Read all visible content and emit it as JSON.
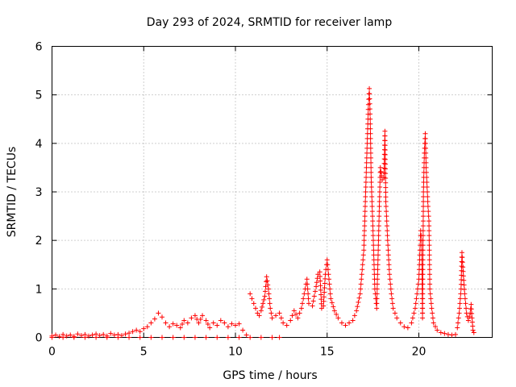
{
  "chart_data": {
    "type": "scatter",
    "title": "Day 293 of 2024, SRMTID for receiver lamp",
    "xlabel": "GPS time / hours",
    "ylabel": "SRMTID / TECUs",
    "xlim": [
      0,
      24
    ],
    "ylim": [
      0,
      6
    ],
    "xticks": [
      0,
      5,
      10,
      15,
      20
    ],
    "yticks": [
      0,
      1,
      2,
      3,
      4,
      5,
      6
    ],
    "grid": true,
    "marker": "+",
    "color": "#ff0000",
    "series": [
      {
        "name": "SRMTID",
        "points": [
          [
            0.0,
            0.03
          ],
          [
            0.2,
            0.05
          ],
          [
            0.4,
            0.02
          ],
          [
            0.6,
            0.06
          ],
          [
            0.8,
            0.03
          ],
          [
            1.0,
            0.05
          ],
          [
            1.2,
            0.02
          ],
          [
            1.4,
            0.07
          ],
          [
            1.6,
            0.04
          ],
          [
            1.8,
            0.06
          ],
          [
            2.0,
            0.03
          ],
          [
            2.2,
            0.05
          ],
          [
            2.4,
            0.07
          ],
          [
            2.6,
            0.04
          ],
          [
            2.8,
            0.06
          ],
          [
            3.0,
            0.03
          ],
          [
            3.2,
            0.08
          ],
          [
            3.4,
            0.05
          ],
          [
            3.6,
            0.06
          ],
          [
            3.8,
            0.04
          ],
          [
            4.0,
            0.07
          ],
          [
            4.2,
            0.09
          ],
          [
            4.4,
            0.12
          ],
          [
            4.6,
            0.15
          ],
          [
            4.8,
            0.12
          ],
          [
            5.0,
            0.18
          ],
          [
            5.2,
            0.22
          ],
          [
            5.4,
            0.3
          ],
          [
            5.6,
            0.38
          ],
          [
            5.8,
            0.5
          ],
          [
            6.0,
            0.42
          ],
          [
            6.2,
            0.3
          ],
          [
            6.4,
            0.22
          ],
          [
            6.6,
            0.28
          ],
          [
            6.8,
            0.25
          ],
          [
            7.0,
            0.2
          ],
          [
            7.2,
            0.35
          ],
          [
            7.4,
            0.3
          ],
          [
            7.6,
            0.4
          ],
          [
            7.8,
            0.45
          ],
          [
            8.0,
            0.3
          ],
          [
            8.2,
            0.45
          ],
          [
            8.4,
            0.35
          ],
          [
            8.6,
            0.2
          ],
          [
            8.8,
            0.3
          ],
          [
            9.0,
            0.25
          ],
          [
            9.2,
            0.35
          ],
          [
            9.4,
            0.3
          ],
          [
            9.6,
            0.22
          ],
          [
            9.8,
            0.28
          ],
          [
            10.0,
            0.25
          ],
          [
            10.2,
            0.28
          ],
          [
            10.4,
            0.15
          ],
          [
            10.6,
            0.05
          ],
          [
            0.0,
            0.0
          ],
          [
            0.6,
            0.0
          ],
          [
            1.2,
            0.0
          ],
          [
            1.8,
            0.0
          ],
          [
            2.4,
            0.0
          ],
          [
            3.0,
            0.0
          ],
          [
            3.6,
            0.0
          ],
          [
            4.2,
            0.0
          ],
          [
            4.8,
            0.0
          ],
          [
            5.4,
            0.0
          ],
          [
            6.0,
            0.0
          ],
          [
            6.6,
            0.0
          ],
          [
            7.2,
            0.0
          ],
          [
            7.8,
            0.0
          ],
          [
            8.4,
            0.0
          ],
          [
            9.0,
            0.0
          ],
          [
            9.6,
            0.0
          ],
          [
            10.2,
            0.0
          ],
          [
            10.8,
            0.0
          ],
          [
            11.4,
            0.0
          ],
          [
            12.0,
            0.0
          ],
          [
            12.4,
            0.0
          ],
          [
            10.8,
            0.9
          ],
          [
            10.9,
            0.8
          ],
          [
            11.0,
            0.7
          ],
          [
            11.1,
            0.6
          ],
          [
            11.2,
            0.5
          ],
          [
            11.3,
            0.45
          ],
          [
            11.4,
            0.55
          ],
          [
            11.5,
            0.7
          ],
          [
            11.6,
            0.85
          ],
          [
            11.7,
            1.25
          ],
          [
            11.8,
            1.0
          ],
          [
            11.9,
            0.6
          ],
          [
            12.0,
            0.4
          ],
          [
            12.2,
            0.45
          ],
          [
            12.4,
            0.5
          ],
          [
            12.6,
            0.3
          ],
          [
            12.8,
            0.25
          ],
          [
            13.0,
            0.35
          ],
          [
            13.2,
            0.55
          ],
          [
            13.4,
            0.4
          ],
          [
            13.6,
            0.6
          ],
          [
            13.8,
            1.0
          ],
          [
            13.9,
            1.2
          ],
          [
            14.0,
            0.7
          ],
          [
            14.2,
            0.65
          ],
          [
            14.4,
            1.05
          ],
          [
            14.5,
            1.3
          ],
          [
            14.6,
            1.35
          ],
          [
            14.7,
            0.6
          ],
          [
            14.8,
            0.65
          ],
          [
            14.9,
            1.3
          ],
          [
            15.0,
            1.6
          ],
          [
            15.1,
            1.2
          ],
          [
            15.2,
            0.8
          ],
          [
            15.4,
            0.55
          ],
          [
            15.6,
            0.4
          ],
          [
            15.8,
            0.3
          ],
          [
            16.0,
            0.25
          ],
          [
            16.2,
            0.3
          ],
          [
            16.4,
            0.35
          ],
          [
            16.6,
            0.55
          ],
          [
            16.8,
            0.9
          ],
          [
            17.0,
            1.8
          ],
          [
            17.1,
            3.0
          ],
          [
            17.2,
            4.2
          ],
          [
            17.25,
            4.8
          ],
          [
            17.3,
            5.13
          ],
          [
            17.35,
            4.5
          ],
          [
            17.4,
            3.3
          ],
          [
            17.5,
            2.2
          ],
          [
            17.6,
            1.0
          ],
          [
            17.7,
            0.6
          ],
          [
            17.8,
            2.0
          ],
          [
            17.9,
            3.5
          ],
          [
            18.0,
            3.25
          ],
          [
            18.1,
            3.3
          ],
          [
            18.15,
            4.25
          ],
          [
            18.2,
            2.8
          ],
          [
            18.3,
            2.0
          ],
          [
            18.4,
            1.3
          ],
          [
            18.5,
            0.9
          ],
          [
            18.6,
            0.6
          ],
          [
            18.8,
            0.4
          ],
          [
            19.0,
            0.3
          ],
          [
            19.2,
            0.22
          ],
          [
            19.4,
            0.2
          ],
          [
            19.6,
            0.3
          ],
          [
            19.8,
            0.6
          ],
          [
            20.0,
            1.2
          ],
          [
            20.1,
            2.2
          ],
          [
            20.15,
            2.0
          ],
          [
            20.2,
            0.4
          ],
          [
            20.25,
            3.0
          ],
          [
            20.3,
            3.8
          ],
          [
            20.35,
            4.2
          ],
          [
            20.4,
            3.5
          ],
          [
            20.5,
            2.7
          ],
          [
            20.55,
            2.4
          ],
          [
            20.6,
            1.0
          ],
          [
            20.7,
            0.6
          ],
          [
            20.8,
            0.3
          ],
          [
            21.0,
            0.15
          ],
          [
            21.2,
            0.1
          ],
          [
            21.4,
            0.08
          ],
          [
            21.6,
            0.06
          ],
          [
            21.8,
            0.05
          ],
          [
            22.0,
            0.06
          ],
          [
            22.1,
            0.2
          ],
          [
            22.2,
            0.5
          ],
          [
            22.3,
            1.0
          ],
          [
            22.35,
            1.75
          ],
          [
            22.4,
            1.45
          ],
          [
            22.5,
            0.9
          ],
          [
            22.6,
            0.5
          ],
          [
            22.7,
            0.35
          ],
          [
            22.8,
            0.5
          ],
          [
            22.85,
            0.68
          ],
          [
            22.9,
            0.4
          ],
          [
            22.95,
            0.15
          ],
          [
            23.0,
            0.1
          ]
        ]
      }
    ]
  }
}
